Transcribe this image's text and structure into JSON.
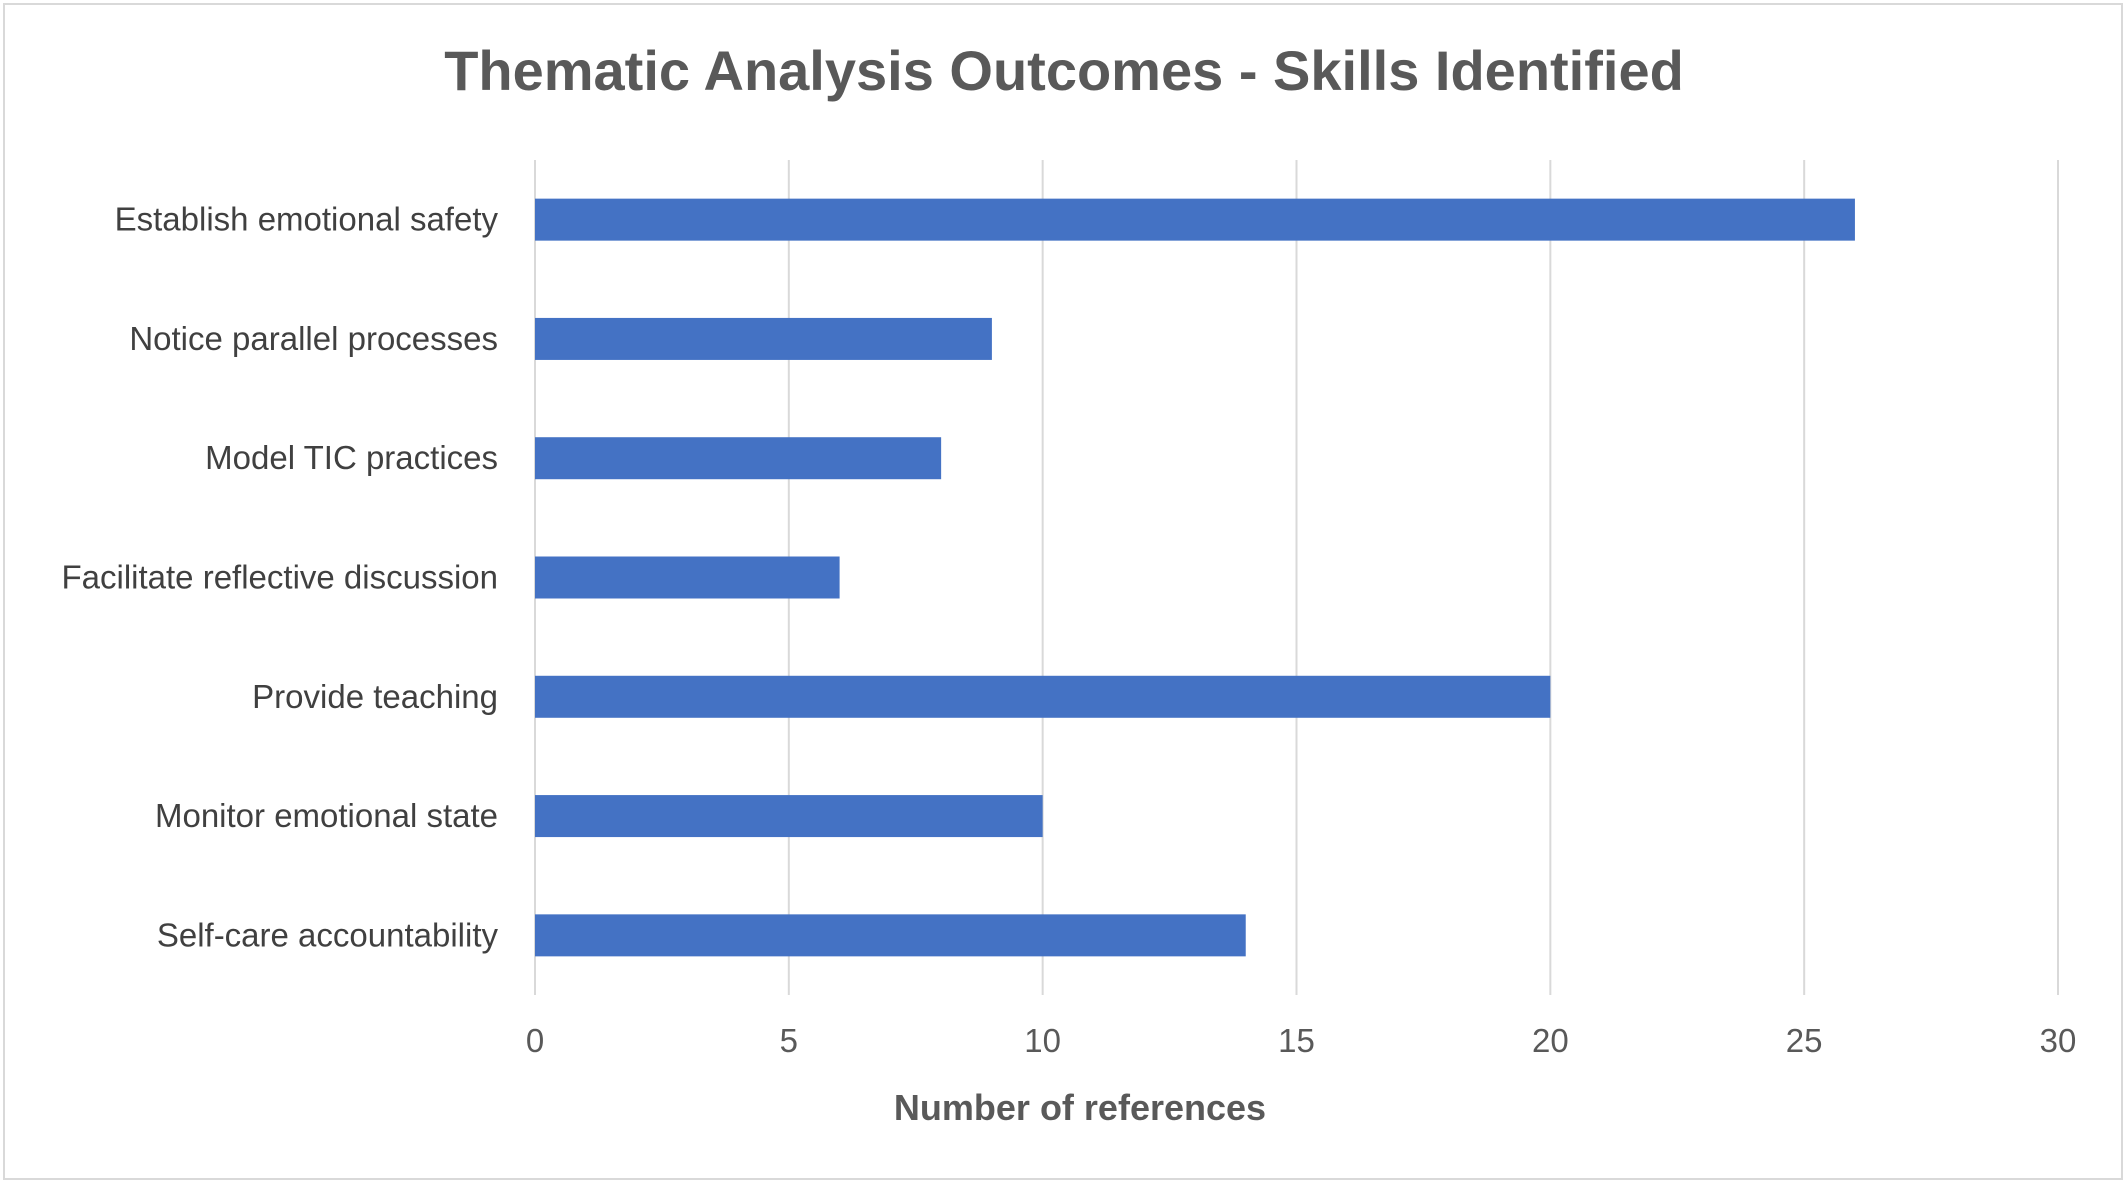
{
  "chart_data": {
    "type": "bar",
    "orientation": "horizontal",
    "title": "Thematic Analysis Outcomes - Skills Identified",
    "xlabel": "Number of references",
    "ylabel": "",
    "categories": [
      "Establish emotional safety",
      "Notice parallel processes",
      "Model TIC practices",
      "Facilitate reflective discussion",
      "Provide teaching",
      "Monitor emotional state",
      "Self-care accountability"
    ],
    "values": [
      26,
      9,
      8,
      6,
      20,
      10,
      14
    ],
    "xlim": [
      0,
      30
    ],
    "xticks": [
      0,
      5,
      10,
      15,
      20,
      25,
      30
    ],
    "grid": true,
    "legend": "none",
    "colors": {
      "bar": "#4472c4",
      "grid": "#d9d9d9",
      "text": "#595959",
      "border": "#d9d9d9"
    }
  }
}
